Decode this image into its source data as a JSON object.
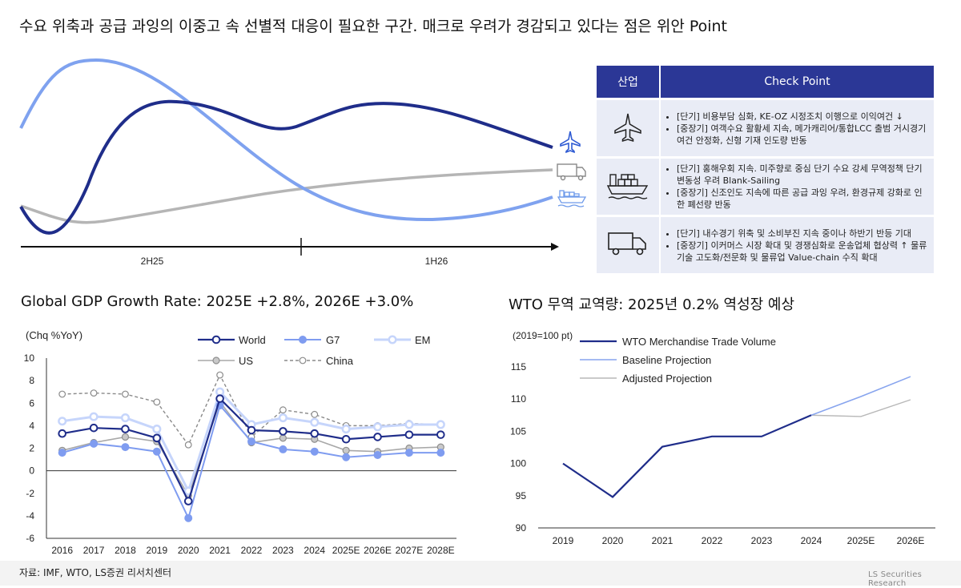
{
  "headline": "수요 위축과 공급 과잉의 이중고 속 선별적 대응이 필요한 구간. 매크로 우려가 경감되고 있다는 점은 위안 Point",
  "timeline": {
    "labels": [
      "2H25",
      "1H26"
    ]
  },
  "table": {
    "headers": {
      "industry": "산업",
      "check": "Check Point"
    },
    "rows": [
      {
        "icon": "airplane-icon",
        "bullets": [
          "[단기] 비용부담 심화, KE-OZ 시정조치 이행으로 이익여건 ↓",
          "[중장기] 여객수요 활황세 지속, 메가캐리어/통합LCC 출범 거시경기 여건 안정화, 신형 기재 인도량 반동"
        ]
      },
      {
        "icon": "cargo-ship-icon",
        "bullets": [
          "[단기] 홍해우회 지속. 미주향로 중심 단기 수요 강세 무역정책 단기 변동성 우려 Blank-Sailing",
          "[중장기] 신조인도 지속에 따른 공급 과잉 우려, 환경규제 강화로 인한 폐선량 반동"
        ]
      },
      {
        "icon": "truck-icon",
        "bullets": [
          "[단기] 내수경기 위축 및 소비부진 지속 중이나 하반기 반등 기대",
          "[중장기] 이커머스 시장 확대 및 경쟁심화로 운송업체 협상력 ↑ 물류기술 고도화/전문화 및 물류업 Value-chain 수직 확대"
        ]
      }
    ]
  },
  "gdp_title": "Global GDP Growth Rate: 2025E +2.8%, 2026E +3.0%",
  "wto_title": "WTO 무역 교역량: 2025년 0.2% 역성장 예상",
  "source": "자료: IMF, WTO, LS증권 리서치센터",
  "brand": "LS Securities Research",
  "colors": {
    "navy": "#1f2d8a",
    "blue": "#7f9cf0",
    "lightblue": "#c6d5fb",
    "gray": "#a8a8a8",
    "darkgray": "#8a8a8a",
    "table_header": "#2b3796"
  },
  "chart_data": [
    {
      "type": "line",
      "ylabel": "(Chq %YoY)",
      "ylim": [
        -6,
        10
      ],
      "yticks": [
        "10",
        "8",
        "6",
        "4",
        "2",
        "0",
        "-2",
        "-4",
        "-6"
      ],
      "categories": [
        "2016",
        "2017",
        "2018",
        "2019",
        "2020",
        "2021",
        "2022",
        "2023",
        "2024",
        "2025E",
        "2026E",
        "2027E",
        "2028E"
      ],
      "legend": "top-right",
      "series": [
        {
          "name": "World",
          "values": [
            3.3,
            3.8,
            3.7,
            2.9,
            -2.7,
            6.4,
            3.6,
            3.5,
            3.3,
            2.8,
            3.0,
            3.2,
            3.2
          ]
        },
        {
          "name": "G7",
          "values": [
            1.6,
            2.4,
            2.1,
            1.7,
            -4.2,
            5.8,
            2.6,
            1.9,
            1.7,
            1.2,
            1.4,
            1.6,
            1.6
          ]
        },
        {
          "name": "EM",
          "values": [
            4.4,
            4.8,
            4.7,
            3.7,
            -1.8,
            7.0,
            4.1,
            4.7,
            4.3,
            3.7,
            3.9,
            4.1,
            4.1
          ]
        },
        {
          "name": "US",
          "values": [
            1.8,
            2.5,
            3.0,
            2.6,
            -2.2,
            6.1,
            2.5,
            2.9,
            2.8,
            1.8,
            1.7,
            2.0,
            2.1
          ]
        },
        {
          "name": "China",
          "values": [
            6.8,
            6.9,
            6.8,
            6.1,
            2.3,
            8.5,
            3.0,
            5.4,
            5.0,
            4.0,
            4.0,
            4.2,
            4.1
          ]
        }
      ]
    },
    {
      "type": "line",
      "ylabel": "(2019=100 pt)",
      "ylim": [
        90,
        115
      ],
      "yticks": [
        "115",
        "110",
        "105",
        "100",
        "95",
        "90"
      ],
      "categories": [
        "2019",
        "2020",
        "2021",
        "2022",
        "2023",
        "2024",
        "2025E",
        "2026E"
      ],
      "legend": "top-left",
      "series": [
        {
          "name": "WTO Merchandise Trade Volume",
          "values": [
            100,
            94.8,
            102.6,
            104.2,
            104.2,
            107.5,
            null,
            null
          ]
        },
        {
          "name": "Baseline Projection",
          "values": [
            null,
            null,
            null,
            null,
            null,
            107.5,
            110.4,
            113.5
          ]
        },
        {
          "name": "Adjusted Projection",
          "values": [
            null,
            null,
            null,
            null,
            null,
            107.5,
            107.3,
            109.9
          ]
        }
      ]
    }
  ]
}
